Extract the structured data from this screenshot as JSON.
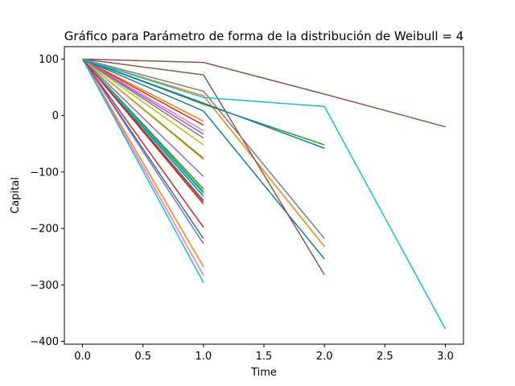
{
  "chart_data": {
    "type": "line",
    "title": "Gráfico para Parámetro de forma de la distribución de Weibull = 4",
    "xlabel": "Time",
    "ylabel": "Capital",
    "xlim": [
      -0.15,
      3.15
    ],
    "ylim": [
      -405,
      122
    ],
    "xticks": [
      0.0,
      0.5,
      1.0,
      1.5,
      2.0,
      2.5,
      3.0
    ],
    "xtick_labels": [
      "0.0",
      "0.5",
      "1.0",
      "1.5",
      "2.0",
      "2.5",
      "3.0"
    ],
    "yticks": [
      100,
      0,
      -100,
      -200,
      -300,
      -400
    ],
    "ytick_labels": [
      "100",
      "0",
      "−100",
      "−200",
      "−300",
      "−400"
    ],
    "grid": false,
    "series": [
      {
        "color": "#1f77b4",
        "x": [
          0,
          1
        ],
        "y": [
          100,
          -218
        ]
      },
      {
        "color": "#ff7f0e",
        "x": [
          0,
          1
        ],
        "y": [
          100,
          -268
        ]
      },
      {
        "color": "#2ca02c",
        "x": [
          0,
          1
        ],
        "y": [
          100,
          -130
        ]
      },
      {
        "color": "#d62728",
        "x": [
          0,
          1
        ],
        "y": [
          100,
          -198
        ]
      },
      {
        "color": "#9467bd",
        "x": [
          0,
          1
        ],
        "y": [
          100,
          -227
        ]
      },
      {
        "color": "#8c564b",
        "x": [
          0,
          1
        ],
        "y": [
          100,
          -157
        ]
      },
      {
        "color": "#e377c2",
        "x": [
          0,
          1
        ],
        "y": [
          100,
          -283
        ]
      },
      {
        "color": "#7f7f7f",
        "x": [
          0,
          1
        ],
        "y": [
          100,
          -150
        ]
      },
      {
        "color": "#bcbd22",
        "x": [
          0,
          1
        ],
        "y": [
          100,
          -52
        ]
      },
      {
        "color": "#17becf",
        "x": [
          0,
          1
        ],
        "y": [
          100,
          -296
        ]
      },
      {
        "color": "#1f77b4",
        "x": [
          0,
          1
        ],
        "y": [
          100,
          -143
        ]
      },
      {
        "color": "#ff7f0e",
        "x": [
          0,
          1
        ],
        "y": [
          100,
          -10
        ]
      },
      {
        "color": "#2ca02c",
        "x": [
          0,
          1
        ],
        "y": [
          100,
          -135
        ]
      },
      {
        "color": "#d62728",
        "x": [
          0,
          1
        ],
        "y": [
          100,
          -17
        ]
      },
      {
        "color": "#9467bd",
        "x": [
          0,
          1
        ],
        "y": [
          100,
          -108
        ]
      },
      {
        "color": "#8c564b",
        "x": [
          0,
          1
        ],
        "y": [
          100,
          -76
        ]
      },
      {
        "color": "#e377c2",
        "x": [
          0,
          1
        ],
        "y": [
          100,
          -27
        ]
      },
      {
        "color": "#7f7f7f",
        "x": [
          0,
          1
        ],
        "y": [
          100,
          -40
        ]
      },
      {
        "color": "#bcbd22",
        "x": [
          0,
          1
        ],
        "y": [
          100,
          -78
        ]
      },
      {
        "color": "#17becf",
        "x": [
          0,
          1
        ],
        "y": [
          100,
          -138
        ]
      },
      {
        "color": "#d62728",
        "x": [
          0,
          1
        ],
        "y": [
          100,
          -153
        ]
      },
      {
        "color": "#9467bd",
        "x": [
          0,
          1
        ],
        "y": [
          100,
          -33
        ]
      },
      {
        "color": "#1f77b4",
        "x": [
          0,
          1,
          2
        ],
        "y": [
          100,
          8,
          -254
        ]
      },
      {
        "color": "#ff7f0e",
        "x": [
          0,
          1,
          2
        ],
        "y": [
          100,
          35,
          -232
        ]
      },
      {
        "color": "#2ca02c",
        "x": [
          0,
          1,
          2
        ],
        "y": [
          100,
          20,
          -52
        ]
      },
      {
        "color": "#8c564b",
        "x": [
          0,
          1,
          2
        ],
        "y": [
          100,
          72,
          -282
        ]
      },
      {
        "color": "#7f7f7f",
        "x": [
          0,
          1,
          2
        ],
        "y": [
          100,
          43,
          -218
        ]
      },
      {
        "color": "#1f77b4",
        "x": [
          0,
          1,
          2
        ],
        "y": [
          100,
          22,
          -58
        ]
      },
      {
        "color": "#8c564b",
        "x": [
          0,
          1,
          2,
          3
        ],
        "y": [
          100,
          94,
          38,
          -20
        ]
      },
      {
        "color": "#17becf",
        "x": [
          0,
          1,
          2,
          3
        ],
        "y": [
          100,
          32,
          16,
          -378
        ]
      }
    ]
  }
}
